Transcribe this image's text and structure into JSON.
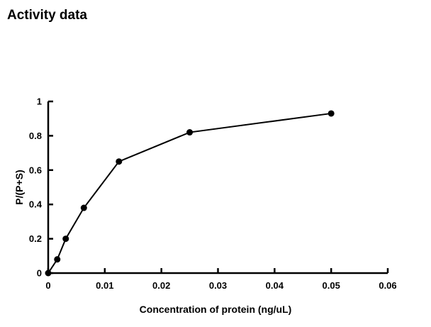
{
  "page": {
    "background_color": "#ffffff",
    "foreground_color": "#000000"
  },
  "chart_data": {
    "type": "line",
    "title": "Activity data",
    "xlabel": "Concentration of protein (ng/uL)",
    "ylabel": "P/(P+S)",
    "x": [
      0,
      0.0016,
      0.0031,
      0.0063,
      0.0125,
      0.025,
      0.05
    ],
    "y": [
      0,
      0.08,
      0.2,
      0.38,
      0.65,
      0.82,
      0.93
    ],
    "xlim": [
      0,
      0.06
    ],
    "ylim": [
      0,
      1
    ],
    "x_tick_values": [
      0,
      0.01,
      0.02,
      0.03,
      0.04,
      0.05,
      0.06
    ],
    "x_tick_labels": [
      "0",
      "0.01",
      "0.02",
      "0.03",
      "0.04",
      "0.05",
      "0.06"
    ],
    "y_tick_values": [
      0,
      0.2,
      0.4,
      0.6,
      0.8,
      1
    ],
    "y_tick_labels": [
      "0",
      "0.2",
      "0.4",
      "0.6",
      "0.8",
      "1"
    ],
    "grid": false,
    "legend": null,
    "line_color": "#000000",
    "marker": "filled-circle",
    "marker_color": "#000000",
    "marker_radius": 4.5
  }
}
